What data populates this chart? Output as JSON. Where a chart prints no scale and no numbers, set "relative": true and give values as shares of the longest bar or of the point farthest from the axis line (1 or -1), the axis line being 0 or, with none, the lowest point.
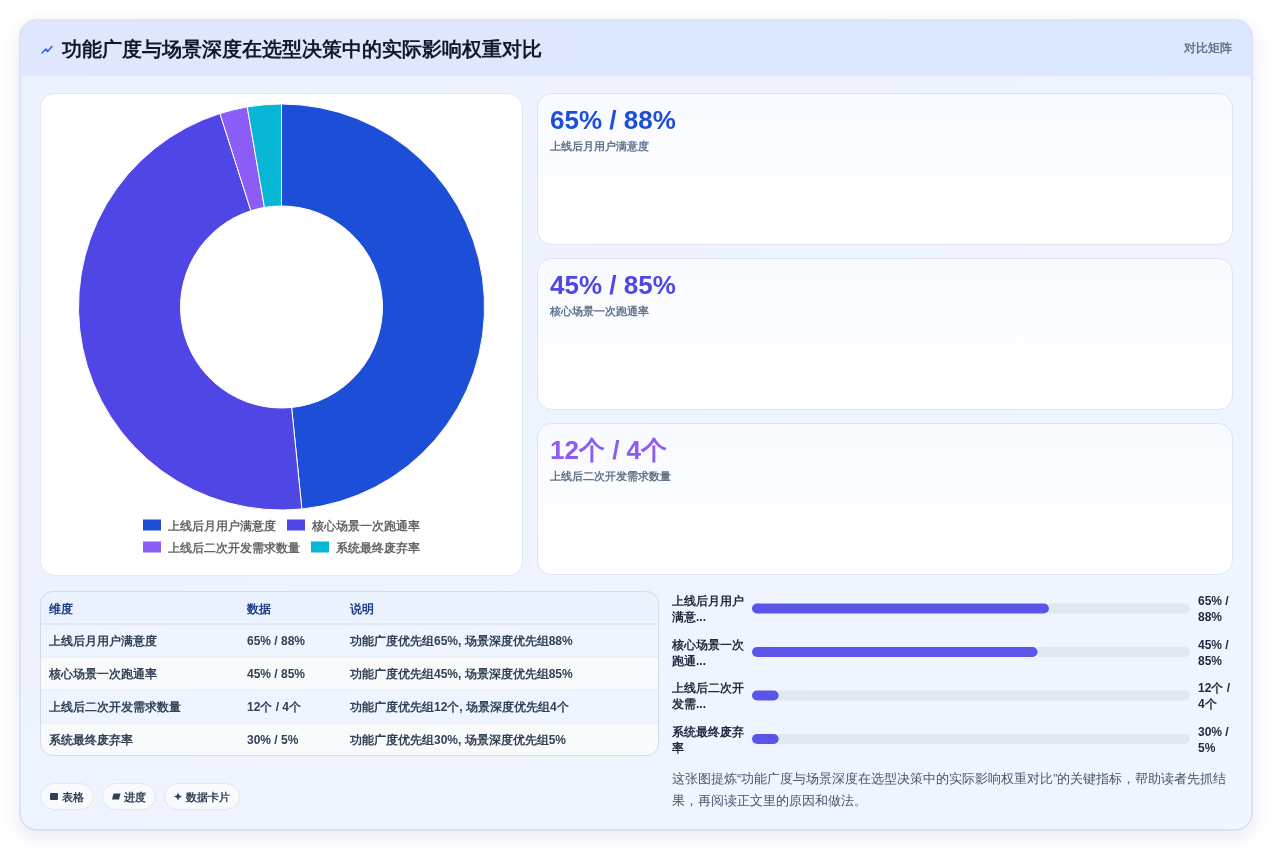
{
  "chart_data": [
    {
      "type": "other",
      "title": "功能广度与场景深度在选型决策中的实际影响权重对比",
      "annotations": [
        "对比矩阵"
      ]
    },
    {
      "type": "donut",
      "categories": [
        "上线后月用户满意度",
        "核心场景一次跑通率",
        "上线后二次开发需求数量",
        "系统最终废弃率"
      ],
      "values": [
        48.4,
        46.7,
        2.2,
        2.7
      ],
      "colors": [
        "#1d4ed8",
        "#4f46e5",
        "#8b5cf6",
        "#06b6d4"
      ],
      "legend": "bottom"
    },
    {
      "type": "other",
      "annotations": [
        "65% / 88%",
        "上线后月用户满意度",
        "45% / 85%",
        "核心场景一次跑通率",
        "12个 / 4个",
        "上线后二次开发需求数量"
      ],
      "colors": [
        "#1d4ed8",
        "#4f46e5",
        "#8b5cf6"
      ]
    },
    {
      "type": "other",
      "categories": [
        "维度",
        "数据",
        "说明"
      ],
      "annotations": [
        "上线后月用户满意度",
        "65% / 88%",
        "功能广度优先组65%, 场景深度优先组88%",
        "核心场景一次跑通率",
        "45% / 85%",
        "功能广度优先组45%, 场景深度优先组85%",
        "上线后二次开发需求数量",
        "12个 / 4个",
        "功能广度优先组12个, 场景深度优先组4个",
        "系统最终废弃率",
        "30% / 5%",
        "功能广度优先组30%, 场景深度优先组5%"
      ]
    },
    {
      "type": "bar",
      "orientation": "horizontal",
      "stacked": true,
      "relative": true,
      "categories": [
        "上线后月用户满意...",
        "核心场景一次跑通...",
        "上线后二次开发需...",
        "系统最终废弃率"
      ],
      "series": [
        {
          "color": "#5a55e8",
          "values": [
            0.678,
            0.652,
            0.061,
            0.061
          ]
        },
        {
          "color": "#e2e8f0",
          "values": [
            0.322,
            0.348,
            0.939,
            0.939
          ]
        }
      ],
      "annotations": [
        "65% / 88%",
        "45% / 85%",
        "12个 / 4个",
        "30% / 5%",
        "这张图提炼“功能广度与场景深度在选型决策中的实际影响权重对比”的关键指标，帮助读者先抓结果，再阅读正文里的原因和做法。"
      ]
    },
    {
      "type": "other",
      "annotations": [
        "表格",
        "进度",
        "数据卡片"
      ]
    }
  ]
}
